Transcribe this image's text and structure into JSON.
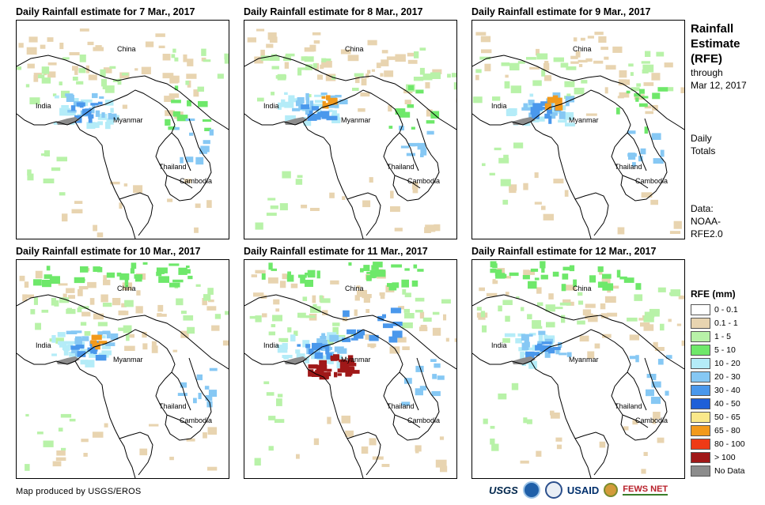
{
  "panels": [
    {
      "title": "Daily Rainfall estimate for 7 Mar., 2017"
    },
    {
      "title": "Daily Rainfall estimate for 8 Mar., 2017"
    },
    {
      "title": "Daily Rainfall estimate for 9 Mar., 2017"
    },
    {
      "title": "Daily Rainfall estimate for 10 Mar., 2017"
    },
    {
      "title": "Daily Rainfall estimate for 11 Mar., 2017"
    },
    {
      "title": "Daily Rainfall estimate for 12 Mar., 2017"
    }
  ],
  "places": {
    "china": "China",
    "india": "India",
    "myanmar": "Myanmar",
    "thailand": "Thailand",
    "cambodia": "Cambodia"
  },
  "sidebar": {
    "title_line1": "Rainfall",
    "title_line2": "Estimate",
    "title_line3": "(RFE)",
    "through": "through",
    "through_date": "Mar 12, 2017",
    "daily": "Daily",
    "totals": "Totals",
    "data_label": "Data:",
    "data_source1": "NOAA-",
    "data_source2": "RFE2.0"
  },
  "legend": {
    "title": "RFE (mm)",
    "items": [
      {
        "label": "0 - 0.1",
        "color": "#ffffff"
      },
      {
        "label": "0.1 - 1",
        "color": "#e8d4b0"
      },
      {
        "label": "1 - 5",
        "color": "#b8f2a8"
      },
      {
        "label": "5 - 10",
        "color": "#6ee86a"
      },
      {
        "label": "10 - 20",
        "color": "#b4ecf8"
      },
      {
        "label": "20 - 30",
        "color": "#86c8f4"
      },
      {
        "label": "30 - 40",
        "color": "#4a98ec"
      },
      {
        "label": "40 - 50",
        "color": "#1e5fd8"
      },
      {
        "label": "50 - 65",
        "color": "#fae88a"
      },
      {
        "label": "65 - 80",
        "color": "#f29a1c"
      },
      {
        "label": "80 - 100",
        "color": "#ee3a16"
      },
      {
        "label": "> 100",
        "color": "#a01818"
      },
      {
        "label": "No Data",
        "color": "#8c8c8c"
      }
    ]
  },
  "footer": {
    "credit": "Map produced by USGS/EROS",
    "usgs": "USGS",
    "usaid": "USAID",
    "fews": "FEWS NET"
  }
}
